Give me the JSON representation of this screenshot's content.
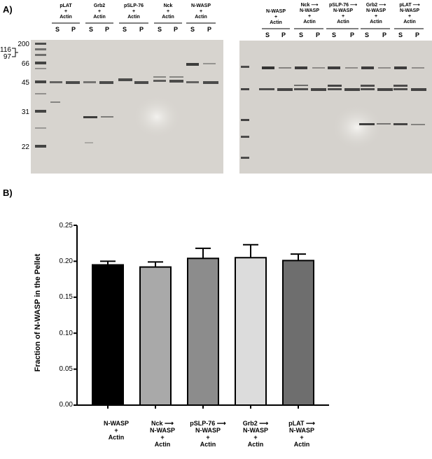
{
  "panel_a_label": "A)",
  "panel_b_label": "B)",
  "left_gel": {
    "lanes": [
      {
        "header": "pLAT\n+\nActin"
      },
      {
        "header": "Grb2\n+\nActin"
      },
      {
        "header": "pSLP-76\n+\nActin"
      },
      {
        "header": "Nck\n+\nActin"
      },
      {
        "header": "N-WASP\n+\nActin"
      }
    ]
  },
  "right_gel": {
    "lanes": [
      {
        "header": "N-WASP\n+\nActin"
      },
      {
        "header": "Nck ⟶\nN-WASP\n+\nActin"
      },
      {
        "header": "pSLP-76 ⟶\nN-WASP\n+\nActin"
      },
      {
        "header": "Grb2 ⟶\nN-WASP\n+\nActin"
      },
      {
        "header": "pLAT ⟶\nN-WASP\n+\nActin"
      }
    ]
  },
  "supernatant_label": "S",
  "pellet_label": "P",
  "markers": {
    "m200": "200",
    "m116": "116",
    "m97": "97",
    "m66": "66",
    "m45": "45",
    "m31": "31",
    "m22": "22"
  },
  "chart_data": {
    "type": "bar",
    "ylabel": "Fraction of N-WASP in the Pellet",
    "ylim": [
      0,
      0.25
    ],
    "yticks": [
      "0.00",
      "0.05",
      "0.10",
      "0.15",
      "0.20",
      "0.25"
    ],
    "categories": [
      "N-WASP\n+\nActin",
      "Nck ⟶\nN-WASP\n+\nActin",
      "pSLP-76 ⟶\nN-WASP\n+\nActin",
      "Grb2 ⟶\nN-WASP\n+\nActin",
      "pLAT ⟶\nN-WASP\n+\nActin"
    ],
    "values": [
      0.195,
      0.192,
      0.204,
      0.205,
      0.201
    ],
    "errors": [
      0.005,
      0.007,
      0.014,
      0.018,
      0.009
    ],
    "colors": [
      "#000000",
      "#a9a9a9",
      "#8c8c8c",
      "#dcdcdc",
      "#6e6e6e"
    ]
  }
}
